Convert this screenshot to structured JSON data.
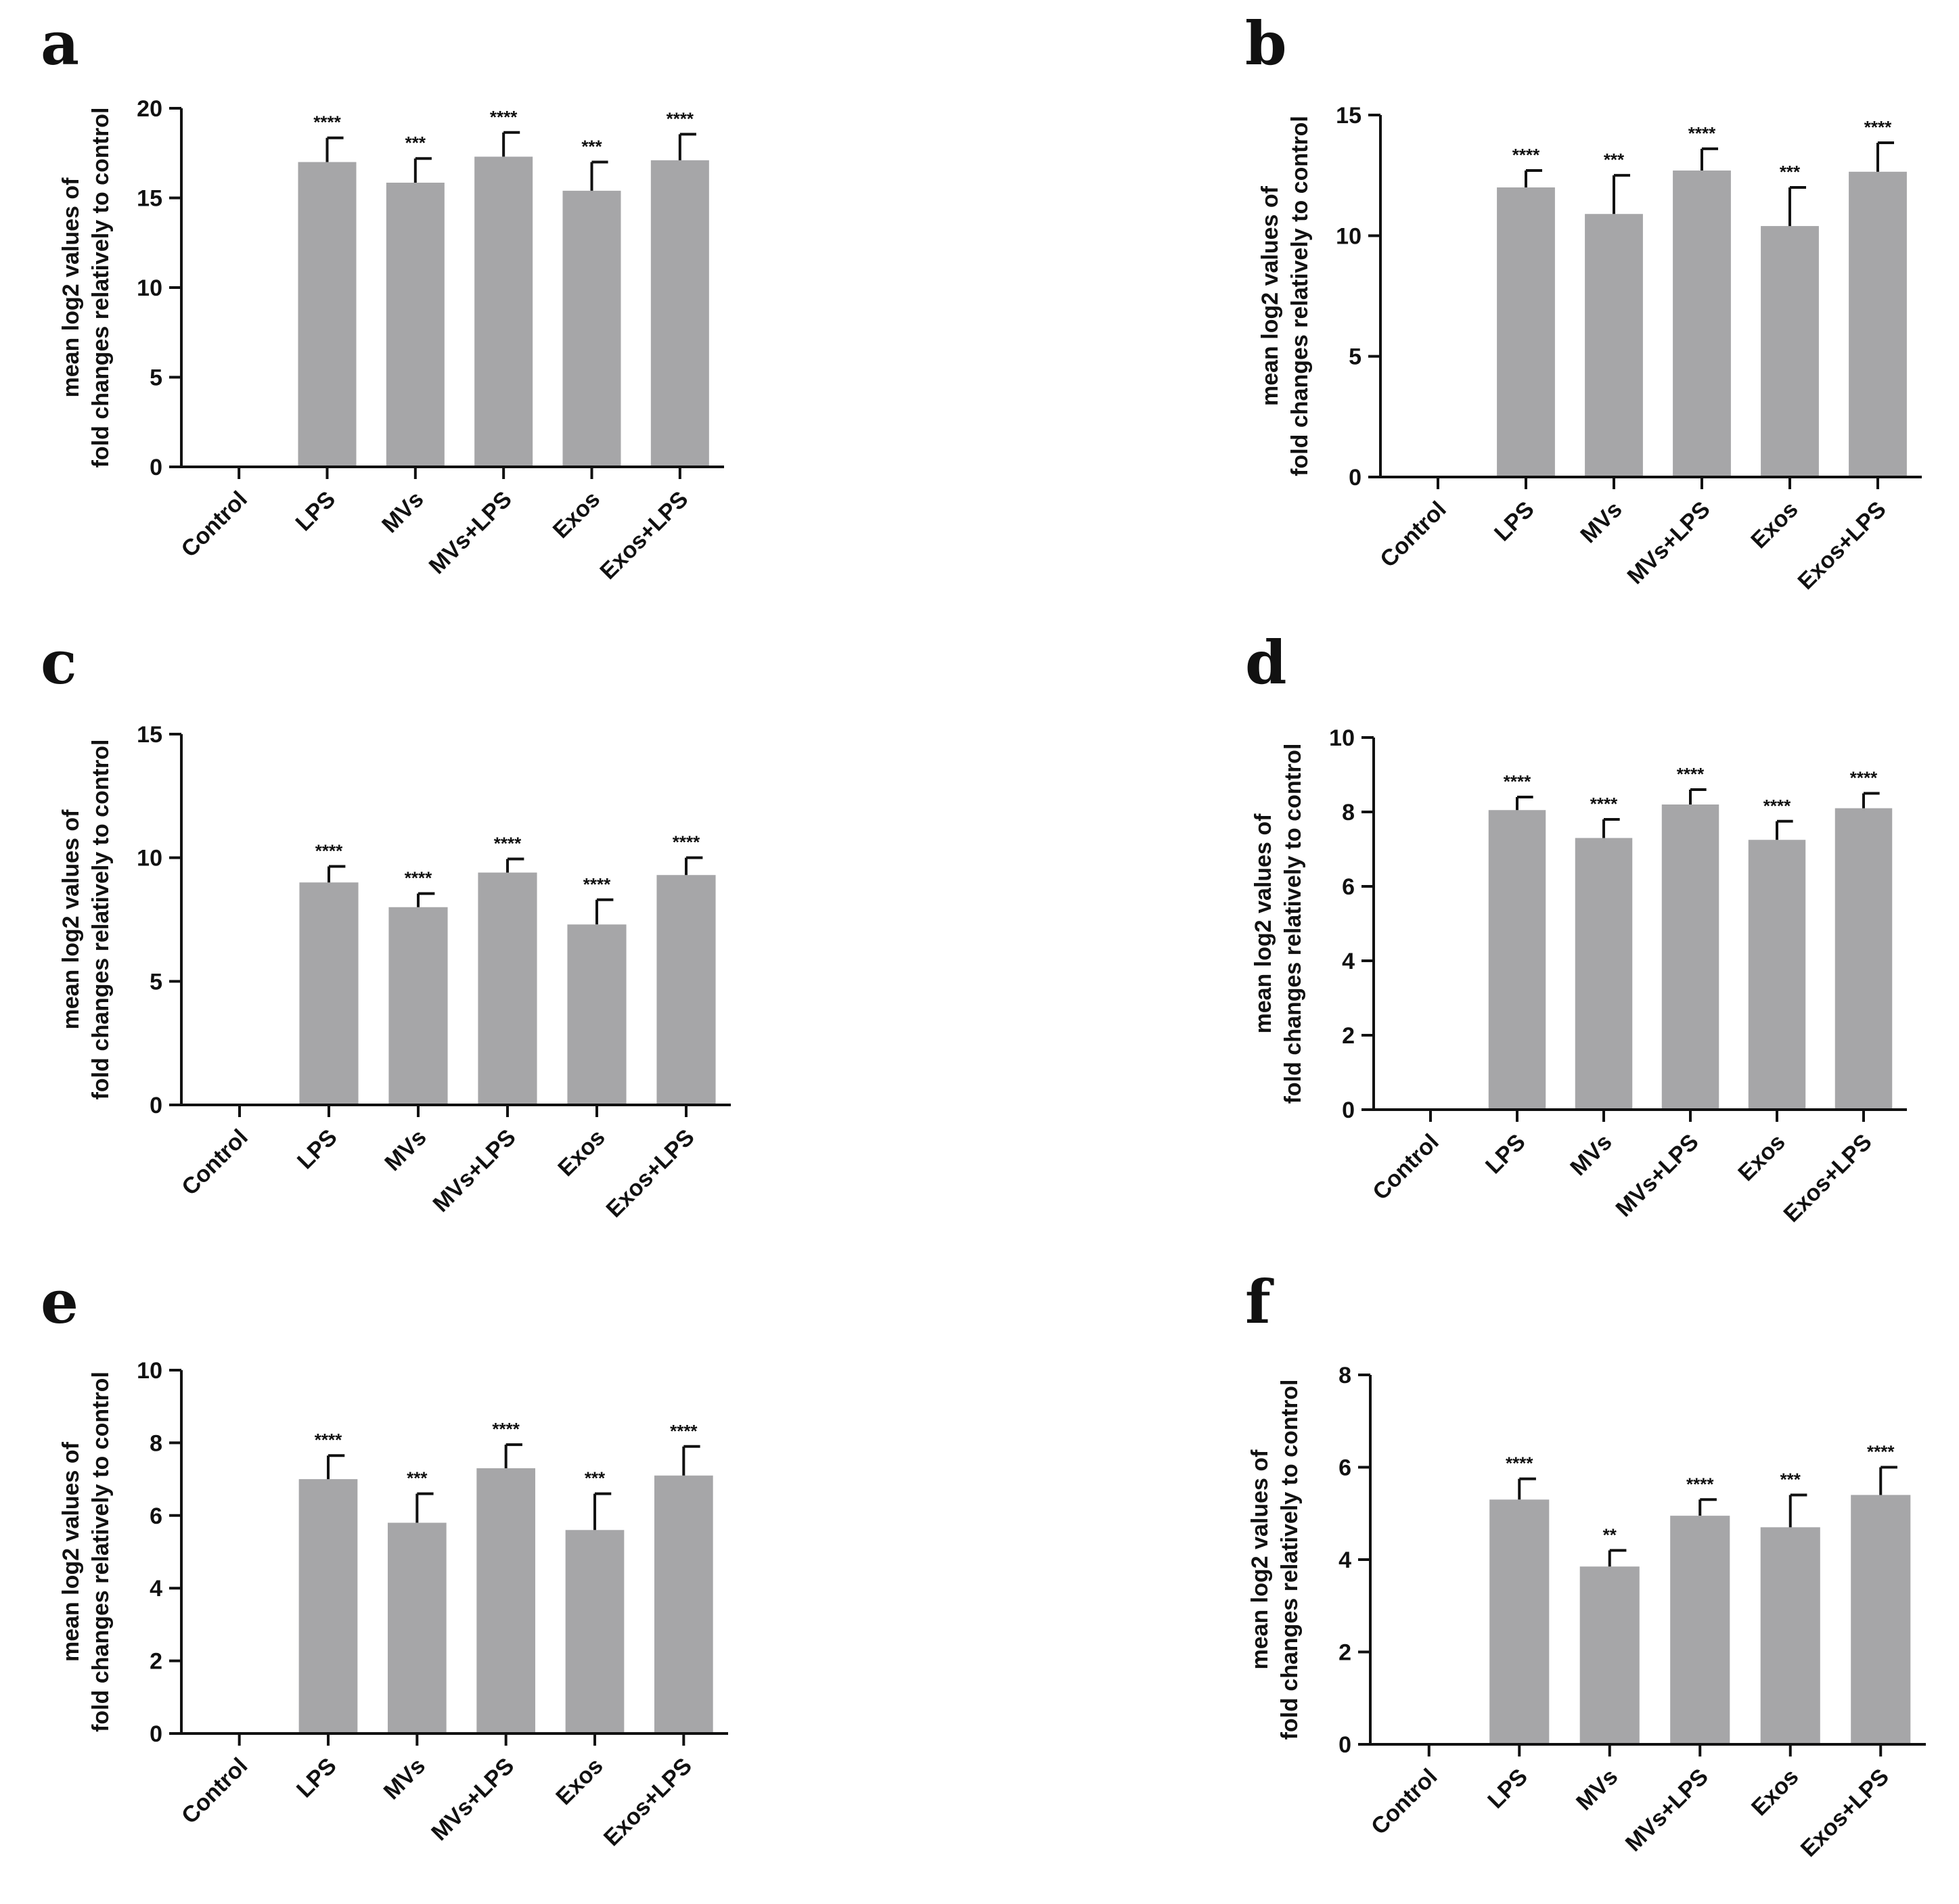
{
  "figure": {
    "ylabel_line1": "mean log2 values of",
    "ylabel_line2": "fold changes relatively to control"
  },
  "chart_data": [
    {
      "type": "bar",
      "panel": "a",
      "categories": [
        "Control",
        "LPS",
        "MVs",
        "MVs+LPS",
        "Exos",
        "Exos+LPS"
      ],
      "values": [
        0,
        17.0,
        15.85,
        17.3,
        15.4,
        17.1
      ],
      "errors": [
        0,
        1.35,
        1.35,
        1.35,
        1.6,
        1.45
      ],
      "significance": [
        "",
        "****",
        "***",
        "****",
        "***",
        "****"
      ],
      "yticks": [
        0,
        5,
        10,
        15,
        20
      ],
      "ylim": [
        0,
        20
      ],
      "ylabel": "mean log2 values of fold changes relatively to control",
      "bar_color": "#a6a6a8"
    },
    {
      "type": "bar",
      "panel": "b",
      "categories": [
        "Control",
        "LPS",
        "MVs",
        "MVs+LPS",
        "Exos",
        "Exos+LPS"
      ],
      "values": [
        0,
        12.0,
        10.9,
        12.7,
        10.4,
        12.65
      ],
      "errors": [
        0,
        0.7,
        1.6,
        0.9,
        1.6,
        1.2
      ],
      "significance": [
        "",
        "****",
        "***",
        "****",
        "***",
        "****"
      ],
      "yticks": [
        0,
        5,
        10,
        15
      ],
      "ylim": [
        0,
        15
      ],
      "ylabel": "mean log2 values of fold changes relatively to control",
      "bar_color": "#a6a6a8"
    },
    {
      "type": "bar",
      "panel": "c",
      "categories": [
        "Control",
        "LPS",
        "MVs",
        "MVs+LPS",
        "Exos",
        "Exos+LPS"
      ],
      "values": [
        0,
        9.0,
        8.0,
        9.4,
        7.3,
        9.3
      ],
      "errors": [
        0,
        0.65,
        0.55,
        0.55,
        1.0,
        0.7
      ],
      "significance": [
        "",
        "****",
        "****",
        "****",
        "****",
        "****"
      ],
      "yticks": [
        0,
        5,
        10,
        15
      ],
      "ylim": [
        0,
        15
      ],
      "ylabel": "mean log2 values of fold changes relatively to control",
      "bar_color": "#a6a6a8"
    },
    {
      "type": "bar",
      "panel": "d",
      "categories": [
        "Control",
        "LPS",
        "MVs",
        "MVs+LPS",
        "Exos",
        "Exos+LPS"
      ],
      "values": [
        0,
        8.05,
        7.3,
        8.2,
        7.25,
        8.1
      ],
      "errors": [
        0,
        0.35,
        0.5,
        0.4,
        0.5,
        0.4
      ],
      "significance": [
        "",
        "****",
        "****",
        "****",
        "****",
        "****"
      ],
      "yticks": [
        0,
        2,
        4,
        6,
        8,
        10
      ],
      "ylim": [
        0,
        10
      ],
      "ylabel": "mean log2 values of fold changes relatively to control",
      "bar_color": "#a6a6a8"
    },
    {
      "type": "bar",
      "panel": "e",
      "categories": [
        "Control",
        "LPS",
        "MVs",
        "MVs+LPS",
        "Exos",
        "Exos+LPS"
      ],
      "values": [
        0,
        7.0,
        5.8,
        7.3,
        5.6,
        7.1
      ],
      "errors": [
        0,
        0.65,
        0.8,
        0.65,
        1.0,
        0.8
      ],
      "significance": [
        "",
        "****",
        "***",
        "****",
        "***",
        "****"
      ],
      "yticks": [
        0,
        2,
        4,
        6,
        8,
        10
      ],
      "ylim": [
        0,
        10
      ],
      "ylabel": "mean log2 values of fold changes relatively to control",
      "bar_color": "#a6a6a8"
    },
    {
      "type": "bar",
      "panel": "f",
      "categories": [
        "Control",
        "LPS",
        "MVs",
        "MVs+LPS",
        "Exos",
        "Exos+LPS"
      ],
      "values": [
        0,
        5.3,
        3.85,
        4.95,
        4.7,
        5.4
      ],
      "errors": [
        0,
        0.45,
        0.35,
        0.35,
        0.7,
        0.6
      ],
      "significance": [
        "",
        "****",
        "**",
        "****",
        "***",
        "****"
      ],
      "yticks": [
        0,
        2,
        4,
        6,
        8
      ],
      "ylim": [
        0,
        8
      ],
      "ylabel": "mean log2 values of fold changes relatively to control",
      "bar_color": "#a6a6a8"
    }
  ]
}
